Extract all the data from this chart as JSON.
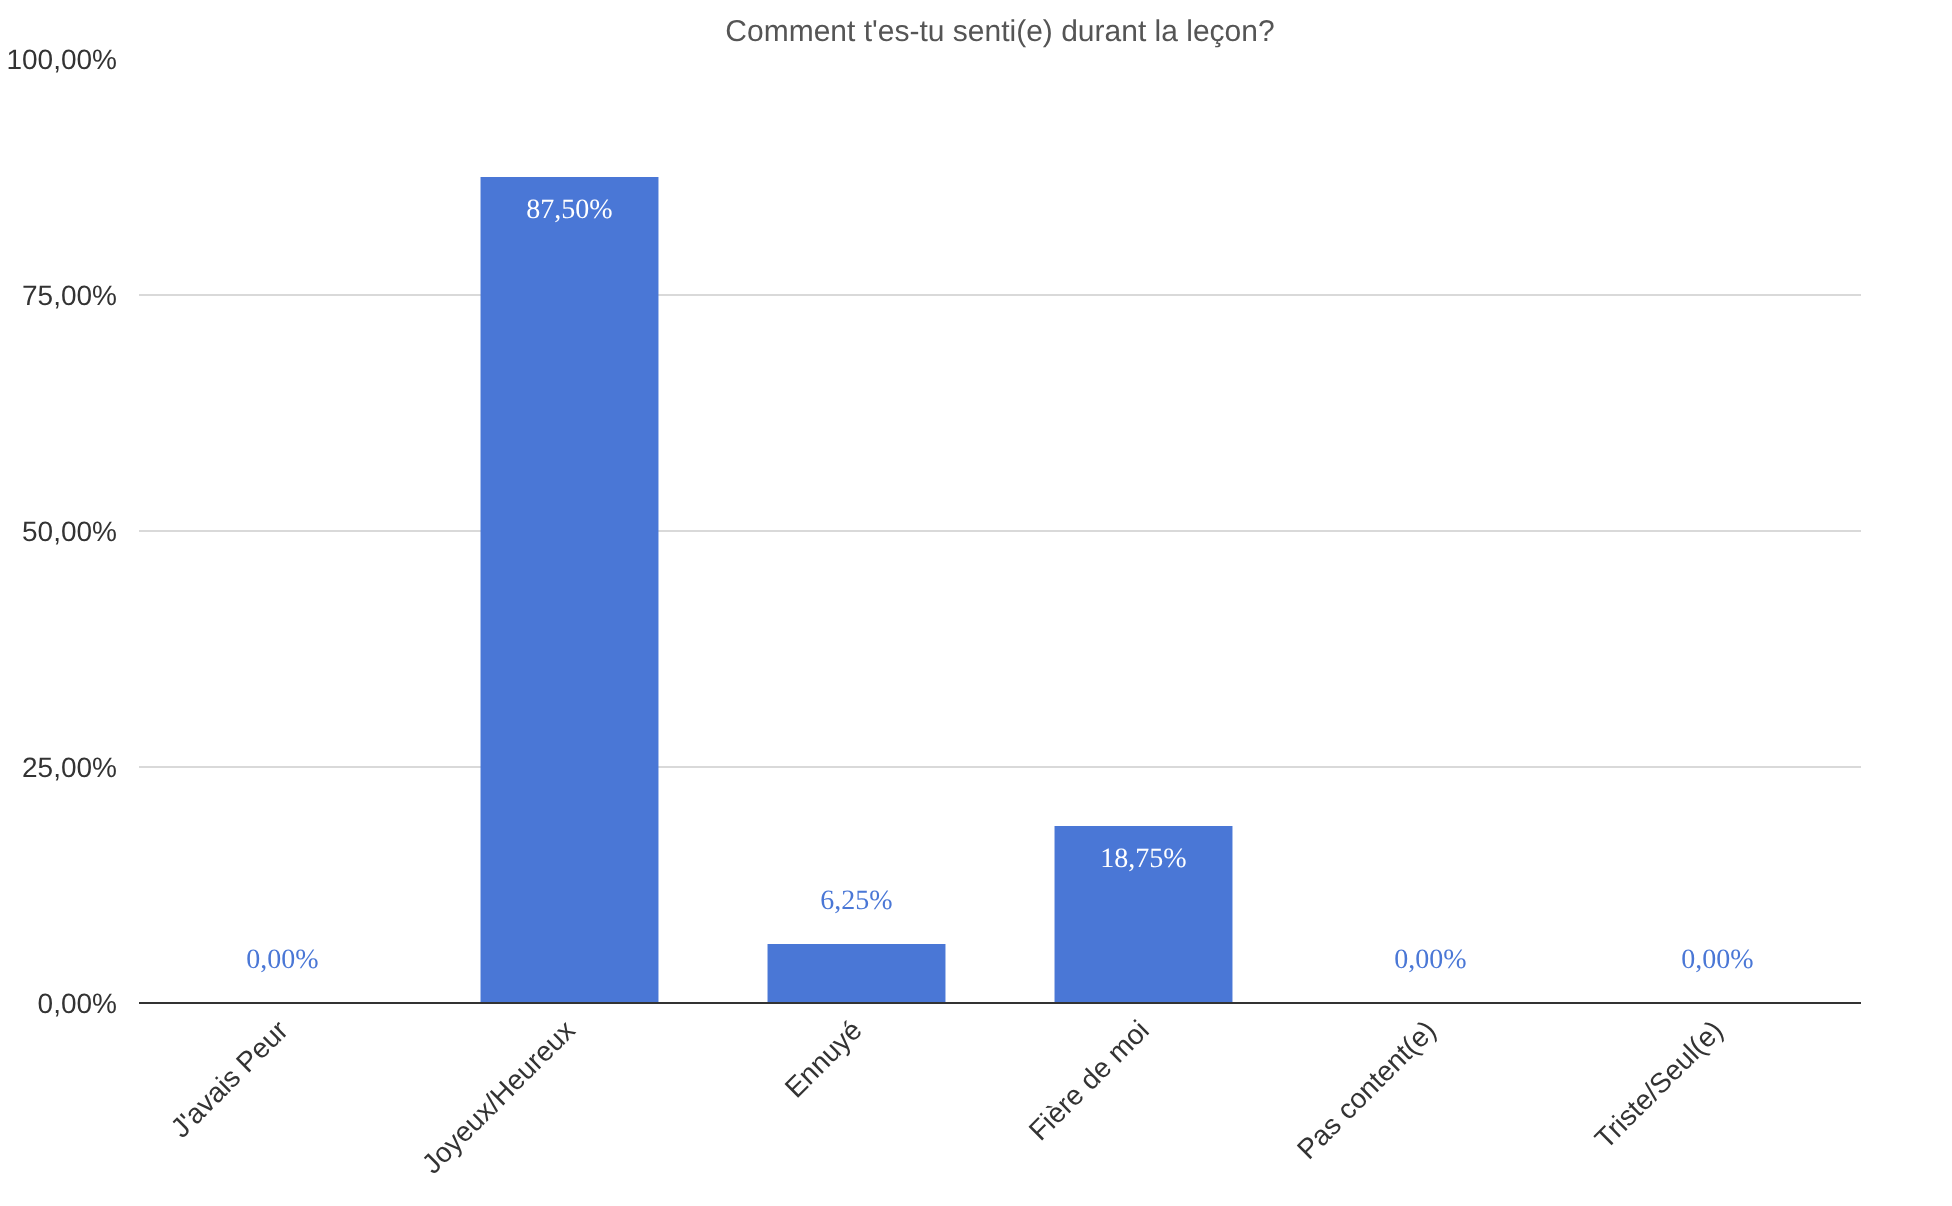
{
  "chart_data": {
    "type": "bar",
    "title": "Comment t'es-tu senti(e) durant la leçon?",
    "categories": [
      "J'avais Peur",
      "Joyeux/Heureux",
      "Ennuyé",
      "Fière de moi",
      "Pas content(e)",
      "Triste/Seul(e)"
    ],
    "values": [
      0,
      87.5,
      6.25,
      18.75,
      0,
      0
    ],
    "value_labels": [
      "0,00%",
      "87,50%",
      "6,25%",
      "18,75%",
      "0,00%",
      "0,00%"
    ],
    "color": "#4a77d6",
    "ylim": [
      0,
      100
    ],
    "yticks": [
      {
        "value": 0,
        "label": "0,00%"
      },
      {
        "value": 25,
        "label": "25,00%"
      },
      {
        "value": 50,
        "label": "50,00%"
      },
      {
        "value": 75,
        "label": "75,00%"
      },
      {
        "value": 100,
        "label": "100,00%"
      }
    ],
    "grid": "y"
  }
}
